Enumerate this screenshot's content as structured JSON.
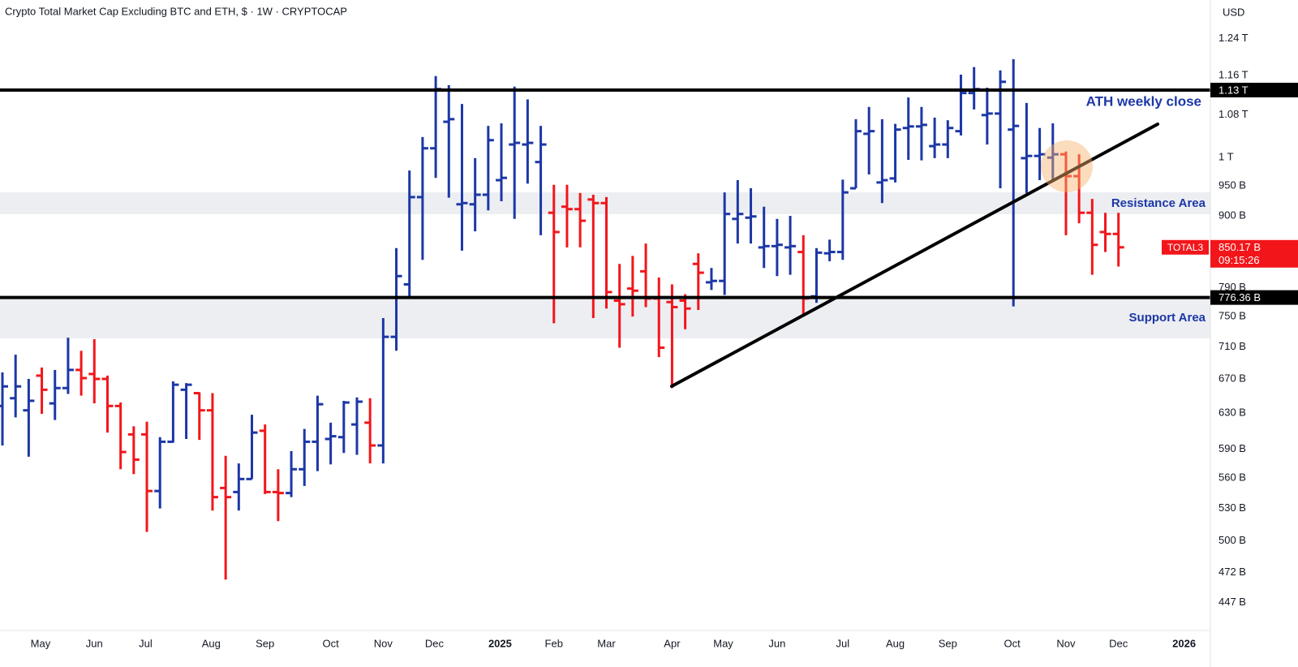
{
  "chart_data": {
    "type": "ohlc",
    "title": "Crypto Total Market Cap Excluding BTC and ETH, $ · 1W · CRYPTOCAP",
    "currency": "USD",
    "log_scale": true,
    "up_color": "#1c37a6",
    "down_color": "#f2161b",
    "open": [
      638,
      647,
      633,
      674,
      641,
      659,
      681,
      676,
      670,
      638,
      606,
      606,
      547,
      598,
      657,
      653,
      633,
      550,
      546,
      559,
      610,
      546,
      545,
      569,
      598,
      601,
      603,
      617,
      619,
      594,
      723,
      795,
      931,
      1017,
      1067,
      919,
      919,
      935,
      960,
      1024,
      1024,
      992,
      905,
      915,
      911,
      927,
      921,
      772,
      789,
      814,
      775,
      770,
      772,
      825,
      798,
      800,
      895,
      897,
      850,
      852,
      850,
      843,
      778,
      841,
      843,
      946,
      1044,
      956,
      963,
      1055,
      1058,
      1021,
      1024,
      1049,
      1124,
      1080,
      1083,
      1052,
      999,
      1003,
      1000,
      1006,
      967,
      905,
      874,
      871
    ],
    "high": [
      678,
      700,
      670,
      684,
      681,
      722,
      705,
      720,
      674,
      642,
      615,
      620,
      603,
      667,
      665,
      654,
      653,
      583,
      575,
      628,
      617,
      569,
      588,
      612,
      650,
      619,
      644,
      648,
      647,
      748,
      849,
      977,
      1038,
      1159,
      1140,
      1102,
      999,
      1059,
      1064,
      1137,
      1111,
      1059,
      952,
      952,
      938,
      935,
      931,
      825,
      837,
      856,
      805,
      795,
      781,
      841,
      819,
      939,
      960,
      946,
      915,
      895,
      900,
      869,
      849,
      862,
      961,
      1072,
      1096,
      1072,
      1063,
      1115,
      1096,
      1075,
      1070,
      1162,
      1178,
      1135,
      1171,
      1195,
      1104,
      1055,
      1064,
      1011,
      1006,
      928,
      905,
      905
    ],
    "low": [
      594,
      625,
      582,
      629,
      622,
      652,
      650,
      641,
      608,
      569,
      564,
      508,
      530,
      597,
      601,
      600,
      528,
      466,
      528,
      559,
      544,
      518,
      541,
      552,
      567,
      574,
      586,
      584,
      575,
      575,
      705,
      776,
      831,
      964,
      930,
      845,
      875,
      909,
      924,
      895,
      954,
      869,
      741,
      850,
      850,
      748,
      761,
      709,
      750,
      763,
      697,
      659,
      733,
      759,
      787,
      780,
      856,
      856,
      819,
      807,
      809,
      752,
      769,
      829,
      831,
      946,
      970,
      921,
      956,
      996,
      995,
      999,
      999,
      1041,
      1091,
      1024,
      946,
      764,
      938,
      960,
      960,
      869,
      888,
      809,
      843,
      821
    ],
    "close": [
      661,
      661,
      644,
      657,
      659,
      681,
      671,
      670,
      638,
      587,
      579,
      547,
      598,
      663,
      663,
      633,
      541,
      541,
      559,
      608,
      546,
      545,
      569,
      598,
      640,
      604,
      642,
      643,
      594,
      723,
      807,
      931,
      1017,
      1132,
      1072,
      921,
      935,
      1032,
      964,
      1027,
      1027,
      1024,
      874,
      911,
      892,
      921,
      784,
      767,
      786,
      775,
      709,
      763,
      761,
      812,
      800,
      903,
      903,
      899,
      852,
      854,
      852,
      775,
      842,
      843,
      939,
      1049,
      1049,
      960,
      1052,
      1058,
      1061,
      1024,
      1055,
      1124,
      1132,
      1083,
      1147,
      1059,
      1003,
      1006,
      1006,
      967,
      905,
      854,
      871,
      850.17
    ],
    "xlim": [
      -0.185,
      92.0
    ],
    "xticks": [
      {
        "value": 2.9,
        "label": "May"
      },
      {
        "value": 7.0,
        "label": "Jun"
      },
      {
        "value": 10.9,
        "label": "Jul"
      },
      {
        "value": 15.9,
        "label": "Aug"
      },
      {
        "value": 20.0,
        "label": "Sep"
      },
      {
        "value": 25.0,
        "label": "Oct"
      },
      {
        "value": 29.0,
        "label": "Nov"
      },
      {
        "value": 32.9,
        "label": "Dec"
      },
      {
        "value": 37.9,
        "label": "2025"
      },
      {
        "value": 42.0,
        "label": "Feb"
      },
      {
        "value": 46.0,
        "label": "Mar"
      },
      {
        "value": 51.0,
        "label": "Apr"
      },
      {
        "value": 54.9,
        "label": "May"
      },
      {
        "value": 59.0,
        "label": "Jun"
      },
      {
        "value": 64.0,
        "label": "Jul"
      },
      {
        "value": 68.0,
        "label": "Aug"
      },
      {
        "value": 72.0,
        "label": "Sep"
      },
      {
        "value": 76.9,
        "label": "Oct"
      },
      {
        "value": 81.0,
        "label": "Nov"
      },
      {
        "value": 85.0,
        "label": "Dec"
      },
      {
        "value": 90.0,
        "label": "2026"
      }
    ],
    "ylim": [
      425,
      1330
    ],
    "yticks": [
      {
        "value": 1240,
        "label": "1.24 T"
      },
      {
        "value": 1160,
        "label": "1.16 T"
      },
      {
        "value": 1080,
        "label": "1.08 T"
      },
      {
        "value": 1000,
        "label": "1 T"
      },
      {
        "value": 950,
        "label": "950 B"
      },
      {
        "value": 900,
        "label": "900 B"
      },
      {
        "value": 790,
        "label": "790 B"
      },
      {
        "value": 750,
        "label": "750 B"
      },
      {
        "value": 710,
        "label": "710 B"
      },
      {
        "value": 670,
        "label": "670 B"
      },
      {
        "value": 630,
        "label": "630 B"
      },
      {
        "value": 590,
        "label": "590 B"
      },
      {
        "value": 560,
        "label": "560 B"
      },
      {
        "value": 530,
        "label": "530 B"
      },
      {
        "value": 500,
        "label": "500 B"
      },
      {
        "value": 472,
        "label": "472 B"
      },
      {
        "value": 447,
        "label": "447 B"
      }
    ],
    "levels": [
      {
        "value": 1130,
        "label": "1.13 T"
      },
      {
        "value": 776.36,
        "label": "776.36 B"
      }
    ],
    "last": {
      "symbol": "TOTAL3",
      "label": "850.17 B",
      "countdown": "09:15:26"
    },
    "annotations": [
      "ATH weekly close",
      "Resistance Area",
      "Support Area"
    ]
  }
}
